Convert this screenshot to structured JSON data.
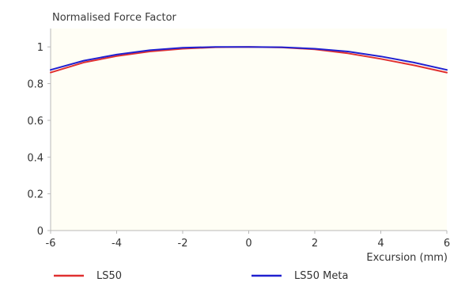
{
  "chart_data": {
    "type": "line",
    "title": "Normalised Force Factor",
    "xlabel": "Excursion (mm)",
    "ylabel": "",
    "xlim": [
      -6,
      6
    ],
    "ylim": [
      0,
      1.1
    ],
    "xticks": [
      "-6",
      "-4",
      "-2",
      "0",
      "2",
      "4",
      "6"
    ],
    "yticks": [
      "0",
      "0.2",
      "0.4",
      "0.6",
      "0.8",
      "1"
    ],
    "grid": false,
    "legend_position": "bottom",
    "plot_background": "#fffef5",
    "series": [
      {
        "name": "LS50",
        "color": "#e03030",
        "x": [
          -6,
          -5,
          -4,
          -3,
          -2,
          -1,
          0,
          1,
          2,
          3,
          4,
          5,
          6
        ],
        "y": [
          0.86,
          0.915,
          0.95,
          0.975,
          0.99,
          0.998,
          1.0,
          0.997,
          0.987,
          0.965,
          0.935,
          0.9,
          0.86
        ]
      },
      {
        "name": "LS50 Meta",
        "color": "#2020d0",
        "x": [
          -6,
          -5,
          -4,
          -3,
          -2,
          -1,
          0,
          1,
          2,
          3,
          4,
          5,
          6
        ],
        "y": [
          0.875,
          0.925,
          0.958,
          0.982,
          0.995,
          1.0,
          1.0,
          0.998,
          0.99,
          0.975,
          0.948,
          0.915,
          0.875
        ]
      }
    ]
  }
}
